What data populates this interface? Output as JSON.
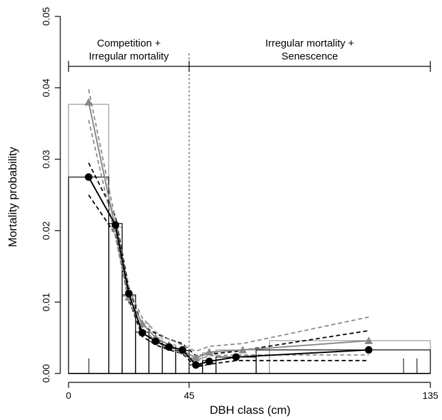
{
  "chart_data": {
    "type": "line",
    "title": "",
    "xlabel": "DBH class (cm)",
    "ylabel": "Mortality probability",
    "xlim": [
      0,
      135
    ],
    "ylim": [
      0,
      0.05
    ],
    "x_ticks": [
      0,
      45,
      135
    ],
    "y_ticks": [
      "0.00",
      "0.01",
      "0.02",
      "0.03",
      "0.04",
      "0.05"
    ],
    "divider_x": 45,
    "annotations": [
      {
        "lines": [
          "Competition +",
          "Irregular mortality"
        ],
        "x_from": 0,
        "x_to": 45
      },
      {
        "lines": [
          "Irregular mortality +",
          "Senescence"
        ],
        "x_from": 45,
        "x_to": 135
      }
    ],
    "histograms": [
      {
        "color": "#000000",
        "bins": [
          [
            0,
            15,
            0.0275
          ],
          [
            15,
            20,
            0.021
          ],
          [
            20,
            25,
            0.011
          ],
          [
            25,
            30,
            0.0058
          ],
          [
            30,
            35,
            0.0045
          ],
          [
            35,
            40,
            0.0037
          ],
          [
            40,
            45,
            0.0032
          ],
          [
            45,
            50,
            0.0012
          ],
          [
            50,
            55,
            0.0018
          ],
          [
            55,
            70,
            0.0023
          ],
          [
            70,
            135,
            0.0033
          ]
        ]
      },
      {
        "color": "#999999",
        "bins": [
          [
            0,
            15,
            0.0377
          ],
          [
            15,
            20,
            0.0205
          ],
          [
            20,
            25,
            0.0108
          ],
          [
            25,
            30,
            0.007
          ],
          [
            30,
            35,
            0.005
          ],
          [
            35,
            40,
            0.004
          ],
          [
            40,
            45,
            0.0032
          ],
          [
            45,
            50,
            0.0022
          ],
          [
            50,
            55,
            0.0029
          ],
          [
            55,
            75,
            0.0033
          ],
          [
            75,
            135,
            0.0046
          ]
        ]
      }
    ],
    "series": [
      {
        "color": "#000000",
        "marker": "circle",
        "ci_color": "#000000",
        "x": [
          7.5,
          17.5,
          22.5,
          27.5,
          32.5,
          37.5,
          42.5,
          47.5,
          52.5,
          62.5,
          112
        ],
        "y": [
          0.0275,
          0.0208,
          0.0112,
          0.0057,
          0.0045,
          0.0037,
          0.0033,
          0.0012,
          0.0017,
          0.0023,
          0.0033
        ],
        "lower": [
          0.025,
          0.0195,
          0.0104,
          0.0052,
          0.004,
          0.0033,
          0.0028,
          0.0009,
          0.0013,
          0.0018,
          0.0018
        ],
        "upper": [
          0.0295,
          0.022,
          0.012,
          0.0067,
          0.0056,
          0.0048,
          0.0042,
          0.0025,
          0.0027,
          0.0031,
          0.006
        ]
      },
      {
        "color": "#888888",
        "marker": "triangle",
        "ci_color": "#888888",
        "x": [
          7.5,
          17.5,
          22.5,
          27.5,
          32.5,
          37.5,
          42.5,
          47.5,
          52.5,
          65,
          112
        ],
        "y": [
          0.038,
          0.0203,
          0.0107,
          0.007,
          0.005,
          0.004,
          0.0032,
          0.0022,
          0.003,
          0.0033,
          0.0046
        ],
        "lower": [
          0.0355,
          0.0192,
          0.0099,
          0.0064,
          0.0045,
          0.0035,
          0.0027,
          0.0018,
          0.0025,
          0.0026,
          0.0026
        ],
        "upper": [
          0.0398,
          0.0215,
          0.0118,
          0.0078,
          0.0058,
          0.0048,
          0.004,
          0.0031,
          0.0038,
          0.0042,
          0.0079
        ]
      }
    ],
    "rug_x": [
      3,
      125,
      130
    ]
  }
}
